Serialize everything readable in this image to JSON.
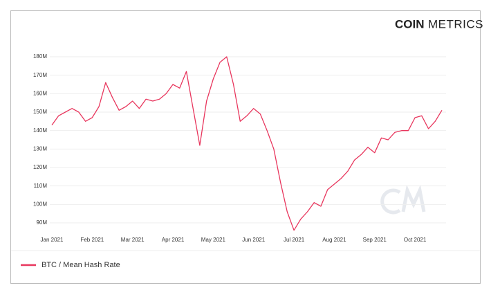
{
  "logo": {
    "bold": "COIN",
    "light": "METRICS"
  },
  "chart_data": {
    "type": "line",
    "categories": [
      "Jan 2021",
      null,
      null,
      null,
      null,
      null,
      "Feb 2021",
      null,
      null,
      null,
      null,
      null,
      "Mar 2021",
      null,
      null,
      null,
      null,
      null,
      "Apr 2021",
      null,
      null,
      null,
      null,
      null,
      "May 2021",
      null,
      null,
      null,
      null,
      null,
      "Jun 2021",
      null,
      null,
      null,
      null,
      null,
      "Jul 2021",
      null,
      null,
      null,
      null,
      null,
      "Aug 2021",
      null,
      null,
      null,
      null,
      null,
      "Sep 2021",
      null,
      null,
      null,
      null,
      null,
      "Oct 2021",
      null,
      null,
      null,
      null
    ],
    "series": [
      {
        "name": "BTC / Mean Hash Rate",
        "color": "#e8365d",
        "values": [
          143000000,
          148000000,
          150000000,
          152000000,
          150000000,
          145000000,
          147000000,
          153000000,
          166000000,
          158000000,
          151000000,
          153000000,
          156000000,
          152000000,
          157000000,
          156000000,
          157000000,
          160000000,
          165000000,
          163000000,
          172000000,
          152000000,
          132000000,
          156000000,
          168000000,
          177000000,
          180000000,
          165000000,
          145000000,
          148000000,
          152000000,
          149000000,
          140000000,
          130000000,
          112000000,
          96000000,
          86000000,
          92000000,
          96000000,
          101000000,
          99000000,
          108000000,
          111000000,
          114000000,
          118000000,
          124000000,
          127000000,
          131000000,
          128000000,
          136000000,
          135000000,
          139000000,
          140000000,
          140000000,
          147000000,
          148000000,
          141000000,
          145000000,
          151000000
        ]
      }
    ],
    "ylim": [
      84000000,
      183000000
    ],
    "yticks": [
      {
        "value": 90000000,
        "label": "90M"
      },
      {
        "value": 100000000,
        "label": "100M"
      },
      {
        "value": 110000000,
        "label": "110M"
      },
      {
        "value": 120000000,
        "label": "120M"
      },
      {
        "value": 130000000,
        "label": "130M"
      },
      {
        "value": 140000000,
        "label": "140M"
      },
      {
        "value": 150000000,
        "label": "150M"
      },
      {
        "value": 160000000,
        "label": "160M"
      },
      {
        "value": 170000000,
        "label": "170M"
      },
      {
        "value": 180000000,
        "label": "180M"
      }
    ],
    "grid": true,
    "legend": "bottom-left"
  }
}
